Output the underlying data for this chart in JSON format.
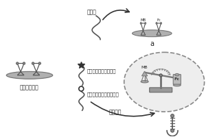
{
  "elements": {
    "left_label": "倒置茎环探针",
    "top_label": "目标物",
    "inner_label1": "二茅铁修饰的内标探针",
    "inner_label2": "亚甲基蓝修饰的信号探针",
    "no_target_label": "无目标物",
    "a_label": "a",
    "mb_label": "MB",
    "fc_label": "Fc"
  },
  "colors": {
    "bg": "#ffffff",
    "gray_dark": "#555555",
    "gray_med": "#888888",
    "gray_light": "#bbbbbb",
    "gray_elec": "#aaaaaa",
    "gray_elec2": "#cccccc",
    "arrow_color": "#333333",
    "text_color": "#222222",
    "ellipse_fill": "#eeeeee"
  },
  "font_sizes": {
    "label_cn": 5.5,
    "label_en": 7.0,
    "sub_label": 4.5
  }
}
